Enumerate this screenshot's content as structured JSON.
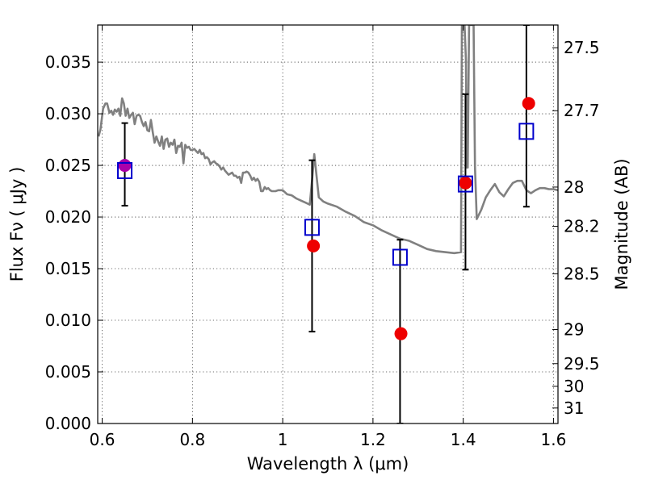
{
  "chart_data": {
    "type": "scatter",
    "title": "",
    "xlabel": "Wavelength  λ (μm)",
    "ylabel": "Flux  Fν  ( μJy )",
    "ylabel_right": "Magnitude (AB)",
    "xlim": [
      0.59,
      1.61
    ],
    "ylim": [
      0.0,
      0.0386
    ],
    "grid": true,
    "x_ticks": [
      0.6,
      0.8,
      1.0,
      1.2,
      1.4,
      1.6
    ],
    "x_tick_labels": [
      "0.6",
      "0.8",
      "1",
      "1.2",
      "1.4",
      "1.6"
    ],
    "y_ticks": [
      0.0,
      0.005,
      0.01,
      0.015,
      0.02,
      0.025,
      0.03,
      0.035
    ],
    "y_tick_labels": [
      "0.000",
      "0.005",
      "0.010",
      "0.015",
      "0.020",
      "0.025",
      "0.030",
      "0.035"
    ],
    "magnitude_ticks": [
      {
        "label": "27.5",
        "flux": 0.0364
      },
      {
        "label": "27.7",
        "flux": 0.0303
      },
      {
        "label": "28",
        "flux": 0.0229
      },
      {
        "label": "28.2",
        "flux": 0.0191
      },
      {
        "label": "28.5",
        "flux": 0.0145
      },
      {
        "label": "29",
        "flux": 0.0091
      },
      {
        "label": "29.5",
        "flux": 0.0058
      },
      {
        "label": "30",
        "flux": 0.0036
      },
      {
        "label": "31",
        "flux": 0.0015
      }
    ],
    "series": [
      {
        "kind": "line",
        "color": "#808080",
        "x": [
          0.592,
          0.596,
          0.602,
          0.607,
          0.611,
          0.616,
          0.62,
          0.624,
          0.628,
          0.632,
          0.636,
          0.64,
          0.644,
          0.648,
          0.652,
          0.656,
          0.66,
          0.664,
          0.668,
          0.672,
          0.676,
          0.68,
          0.684,
          0.688,
          0.692,
          0.696,
          0.7,
          0.704,
          0.708,
          0.712,
          0.716,
          0.72,
          0.724,
          0.728,
          0.732,
          0.736,
          0.74,
          0.744,
          0.748,
          0.752,
          0.756,
          0.76,
          0.764,
          0.768,
          0.772,
          0.776,
          0.78,
          0.784,
          0.788,
          0.792,
          0.796,
          0.8,
          0.804,
          0.808,
          0.812,
          0.816,
          0.82,
          0.824,
          0.828,
          0.832,
          0.836,
          0.84,
          0.844,
          0.848,
          0.852,
          0.856,
          0.86,
          0.864,
          0.868,
          0.872,
          0.876,
          0.88,
          0.884,
          0.888,
          0.892,
          0.896,
          0.9,
          0.904,
          0.908,
          0.912,
          0.916,
          0.92,
          0.924,
          0.928,
          0.932,
          0.936,
          0.94,
          0.944,
          0.948,
          0.952,
          0.956,
          0.96,
          0.964,
          0.968,
          0.972,
          0.976,
          0.98,
          0.984,
          0.99,
          1.0,
          1.01,
          1.02,
          1.03,
          1.04,
          1.05,
          1.06,
          1.065,
          1.07,
          1.08,
          1.09,
          1.1,
          1.12,
          1.14,
          1.16,
          1.18,
          1.2,
          1.22,
          1.24,
          1.26,
          1.28,
          1.3,
          1.32,
          1.34,
          1.36,
          1.38,
          1.395,
          1.397,
          1.4,
          1.403,
          1.406,
          1.408,
          1.41,
          1.413,
          1.416,
          1.42,
          1.423,
          1.426,
          1.43,
          1.44,
          1.45,
          1.46,
          1.47,
          1.48,
          1.49,
          1.5,
          1.51,
          1.52,
          1.53,
          1.54,
          1.55,
          1.56,
          1.57,
          1.58,
          1.59,
          1.6,
          1.61
        ],
        "y": [
          0.0278,
          0.0285,
          0.0305,
          0.031,
          0.031,
          0.0301,
          0.0303,
          0.0299,
          0.0304,
          0.0302,
          0.0305,
          0.0298,
          0.0315,
          0.031,
          0.0298,
          0.0305,
          0.0296,
          0.0299,
          0.0301,
          0.029,
          0.0298,
          0.0299,
          0.0298,
          0.0292,
          0.0288,
          0.0292,
          0.0284,
          0.0283,
          0.0294,
          0.0282,
          0.0272,
          0.0278,
          0.0273,
          0.0269,
          0.0278,
          0.0266,
          0.0275,
          0.0276,
          0.0268,
          0.0272,
          0.027,
          0.0275,
          0.0262,
          0.0269,
          0.0268,
          0.0272,
          0.0252,
          0.027,
          0.0267,
          0.0268,
          0.0265,
          0.0265,
          0.0266,
          0.0264,
          0.0262,
          0.0265,
          0.0261,
          0.0262,
          0.0257,
          0.0258,
          0.0256,
          0.0251,
          0.0253,
          0.0254,
          0.0252,
          0.0251,
          0.0249,
          0.0246,
          0.0248,
          0.0245,
          0.0243,
          0.0241,
          0.0242,
          0.0243,
          0.024,
          0.024,
          0.0238,
          0.0239,
          0.0233,
          0.0243,
          0.0243,
          0.0244,
          0.0243,
          0.024,
          0.0236,
          0.0238,
          0.0235,
          0.0237,
          0.0234,
          0.0225,
          0.0225,
          0.0229,
          0.0227,
          0.0228,
          0.0226,
          0.0225,
          0.0225,
          0.0225,
          0.0226,
          0.0226,
          0.0222,
          0.0221,
          0.0218,
          0.0216,
          0.0214,
          0.0212,
          0.0235,
          0.0261,
          0.0219,
          0.0215,
          0.0213,
          0.021,
          0.0205,
          0.0201,
          0.0195,
          0.0192,
          0.0187,
          0.0183,
          0.0179,
          0.0177,
          0.0173,
          0.0169,
          0.0167,
          0.0166,
          0.0165,
          0.0166,
          0.0386,
          0.0386,
          0.0386,
          0.0352,
          0.0248,
          0.0248,
          0.0386,
          0.0386,
          0.0386,
          0.0386,
          0.0249,
          0.0198,
          0.0207,
          0.0219,
          0.0226,
          0.0232,
          0.0224,
          0.022,
          0.0227,
          0.0233,
          0.0235,
          0.0235,
          0.0226,
          0.0223,
          0.0226,
          0.0228,
          0.0228,
          0.0227,
          0.0227,
          0.0226
        ]
      },
      {
        "kind": "errorbar-squares",
        "color": "#0000cc",
        "x": [
          0.65,
          1.065,
          1.26,
          1.405,
          1.54
        ],
        "y": [
          0.0245,
          0.019,
          0.0161,
          0.0232,
          0.0283
        ],
        "err_low": [
          0.0211,
          0.0089,
          0.0,
          0.0149,
          0.021
        ],
        "err_high": [
          0.0291,
          0.0255,
          0.0178,
          0.0319,
          0.0386
        ]
      },
      {
        "kind": "points",
        "colors": [
          "#aa00aa",
          "#ee0000",
          "#ee0000",
          "#ee0000",
          "#ee0000"
        ],
        "x": [
          0.65,
          1.068,
          1.262,
          1.405,
          1.545
        ],
        "y": [
          0.025,
          0.0172,
          0.0087,
          0.0233,
          0.031
        ]
      }
    ]
  }
}
